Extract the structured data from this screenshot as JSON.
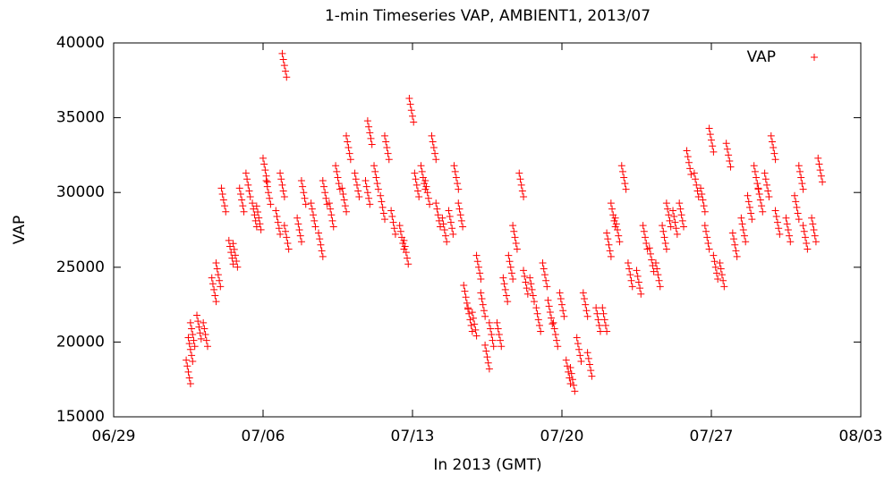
{
  "chart_data": {
    "type": "scatter",
    "title": "1-min Timeseries VAP, AMBIENT1, 2013/07",
    "x_label": "In 2013 (GMT)",
    "y_label": "VAP",
    "xlim": [
      0,
      35
    ],
    "xticks": [
      {
        "value": 0,
        "label": "06/29"
      },
      {
        "value": 7,
        "label": "07/06"
      },
      {
        "value": 14,
        "label": "07/13"
      },
      {
        "value": 21,
        "label": "07/20"
      },
      {
        "value": 28,
        "label": "07/27"
      },
      {
        "value": 35,
        "label": "08/03"
      }
    ],
    "ylim": [
      15000,
      40000
    ],
    "yticks": [
      15000,
      20000,
      25000,
      30000,
      35000,
      40000
    ],
    "legend": "top-right",
    "series": [
      {
        "name": "VAP",
        "color": "#ff0000",
        "x": [
          3.5,
          3.6,
          3.7,
          4.0,
          4.3,
          4.7,
          4.9,
          5.15,
          5.5,
          5.7,
          6.0,
          6.3,
          6.6,
          6.8,
          7.1,
          7.25,
          7.7,
          7.9,
          8.0,
          8.1,
          8.7,
          8.9,
          9.35,
          9.7,
          9.9,
          10.2,
          10.5,
          10.8,
          11.0,
          11.4,
          11.9,
          12.0,
          12.3,
          12.6,
          12.8,
          13.1,
          13.5,
          13.7,
          13.95,
          14.2,
          14.5,
          14.7,
          15.0,
          15.2,
          15.5,
          15.8,
          16.05,
          16.25,
          16.5,
          16.7,
          16.9,
          17.1,
          17.3,
          17.5,
          17.7,
          18.06,
          18.35,
          18.6,
          18.8,
          19.1,
          19.3,
          19.6,
          19.9,
          20.2,
          20.45,
          20.7,
          21.0,
          21.3,
          21.5,
          21.8,
          22.1,
          22.3,
          22.7,
          23.0,
          23.2,
          23.4,
          23.6,
          23.9,
          24.2,
          24.6,
          24.9,
          25.2,
          25.5,
          25.8,
          26.0,
          26.3,
          26.6,
          26.95,
          27.3,
          27.6,
          27.8,
          28.0,
          28.2,
          28.5,
          28.8,
          29.1,
          29.5,
          29.8,
          30.1,
          30.3,
          30.6,
          30.9,
          31.1,
          31.6,
          32.0,
          32.2,
          32.4,
          32.8,
          33.1
        ],
        "values": [
          18000,
          19500,
          20500,
          21000,
          20500,
          23500,
          24500,
          29500,
          26000,
          25800,
          29500,
          30500,
          28500,
          28300,
          31500,
          30000,
          28000,
          30500,
          38500,
          27000,
          27500,
          30000,
          28500,
          26500,
          30000,
          28500,
          31000,
          29500,
          33000,
          30500,
          30000,
          34000,
          31000,
          29000,
          33000,
          28000,
          27000,
          26000,
          35500,
          30500,
          31000,
          30000,
          33000,
          28500,
          27500,
          28000,
          31000,
          28500,
          23000,
          21500,
          21200,
          25000,
          22500,
          19000,
          20500,
          20500,
          23500,
          25000,
          27000,
          30500,
          24000,
          23500,
          21500,
          24500,
          22000,
          20500,
          22500,
          18000,
          17500,
          19500,
          22500,
          18500,
          21500,
          21500,
          26500,
          28500,
          27500,
          31000,
          24500,
          24000,
          27000,
          25500,
          24500,
          27000,
          28500,
          28000,
          28500,
          32000,
          30500,
          29500,
          27000,
          33500,
          25000,
          24500,
          32500,
          26500,
          27500,
          29000,
          31000,
          29500,
          30500,
          33000,
          28000,
          27500,
          29000,
          31000,
          27000,
          27500,
          31500
        ]
      }
    ]
  }
}
